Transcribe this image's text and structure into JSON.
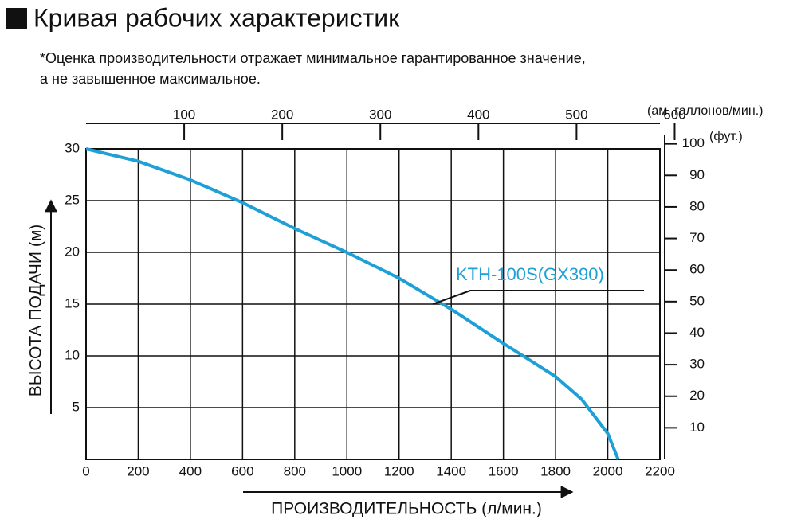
{
  "chart_data": {
    "type": "line",
    "title": "Кривая рабочих характеристик",
    "note": [
      "*Оценка производительности отражает минимальное гарантированное значение,",
      "а не завышенное максимальное."
    ],
    "x_label": "ПРОИЗВОДИТЕЛЬНОСТЬ (л/мин.)",
    "y_label": "ВЫСОТА ПОДАЧИ (м)",
    "x2_label": "(ам. галлонов/мин.)",
    "y2_label": "(фут.)",
    "x": [
      0,
      200,
      400,
      600,
      800,
      1000,
      1200,
      1400,
      1600,
      1800,
      1900,
      2000,
      2040
    ],
    "series": [
      {
        "name": "KTH-100S(GX390)",
        "color": "#1ea0d7",
        "values": [
          30,
          28.8,
          27,
          24.8,
          22.3,
          20,
          17.5,
          14.5,
          11.2,
          8,
          5.8,
          2.5,
          0
        ]
      }
    ],
    "xlim": [
      0,
      2200
    ],
    "xticks": [
      0,
      200,
      400,
      600,
      800,
      1000,
      1200,
      1400,
      1600,
      1800,
      2000,
      2200
    ],
    "ylim": [
      0,
      30
    ],
    "yticks": [
      5,
      10,
      15,
      20,
      25,
      30
    ],
    "x2lim": [
      0,
      585
    ],
    "x2ticks": [
      100,
      200,
      300,
      400,
      500,
      600
    ],
    "y2lim": [
      0,
      98.4
    ],
    "y2ticks": [
      10,
      20,
      30,
      40,
      50,
      60,
      70,
      80,
      90,
      100
    ],
    "grid": true
  }
}
